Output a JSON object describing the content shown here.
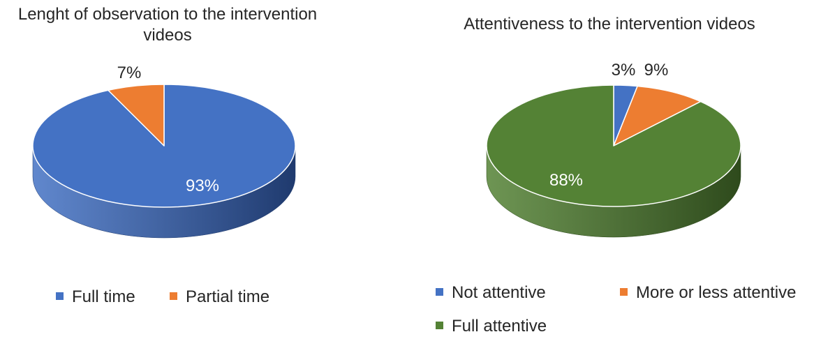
{
  "chart_data": [
    {
      "type": "pie",
      "title": "Lenght of observation to the intervention videos",
      "categories": [
        "Full time",
        "Partial time"
      ],
      "values": [
        93,
        7
      ],
      "labels": [
        "93%",
        "7%"
      ],
      "colors": [
        "#4472C4",
        "#ED7D31"
      ],
      "side_colors": [
        "#1F3A6E",
        "#A85A23"
      ],
      "legend_position": "bottom",
      "style": "3d"
    },
    {
      "type": "pie",
      "title": "Attentiveness to the intervention videos",
      "categories": [
        "Not attentive",
        "More or less attentive",
        "Full attentive"
      ],
      "values": [
        3,
        9,
        88
      ],
      "labels": [
        "3%",
        "9%",
        "88%"
      ],
      "colors": [
        "#4472C4",
        "#ED7D31",
        "#548235"
      ],
      "side_colors": [
        "#1F3A6E",
        "#A85A23",
        "#2E4A1C"
      ],
      "legend_position": "bottom",
      "style": "3d"
    }
  ]
}
